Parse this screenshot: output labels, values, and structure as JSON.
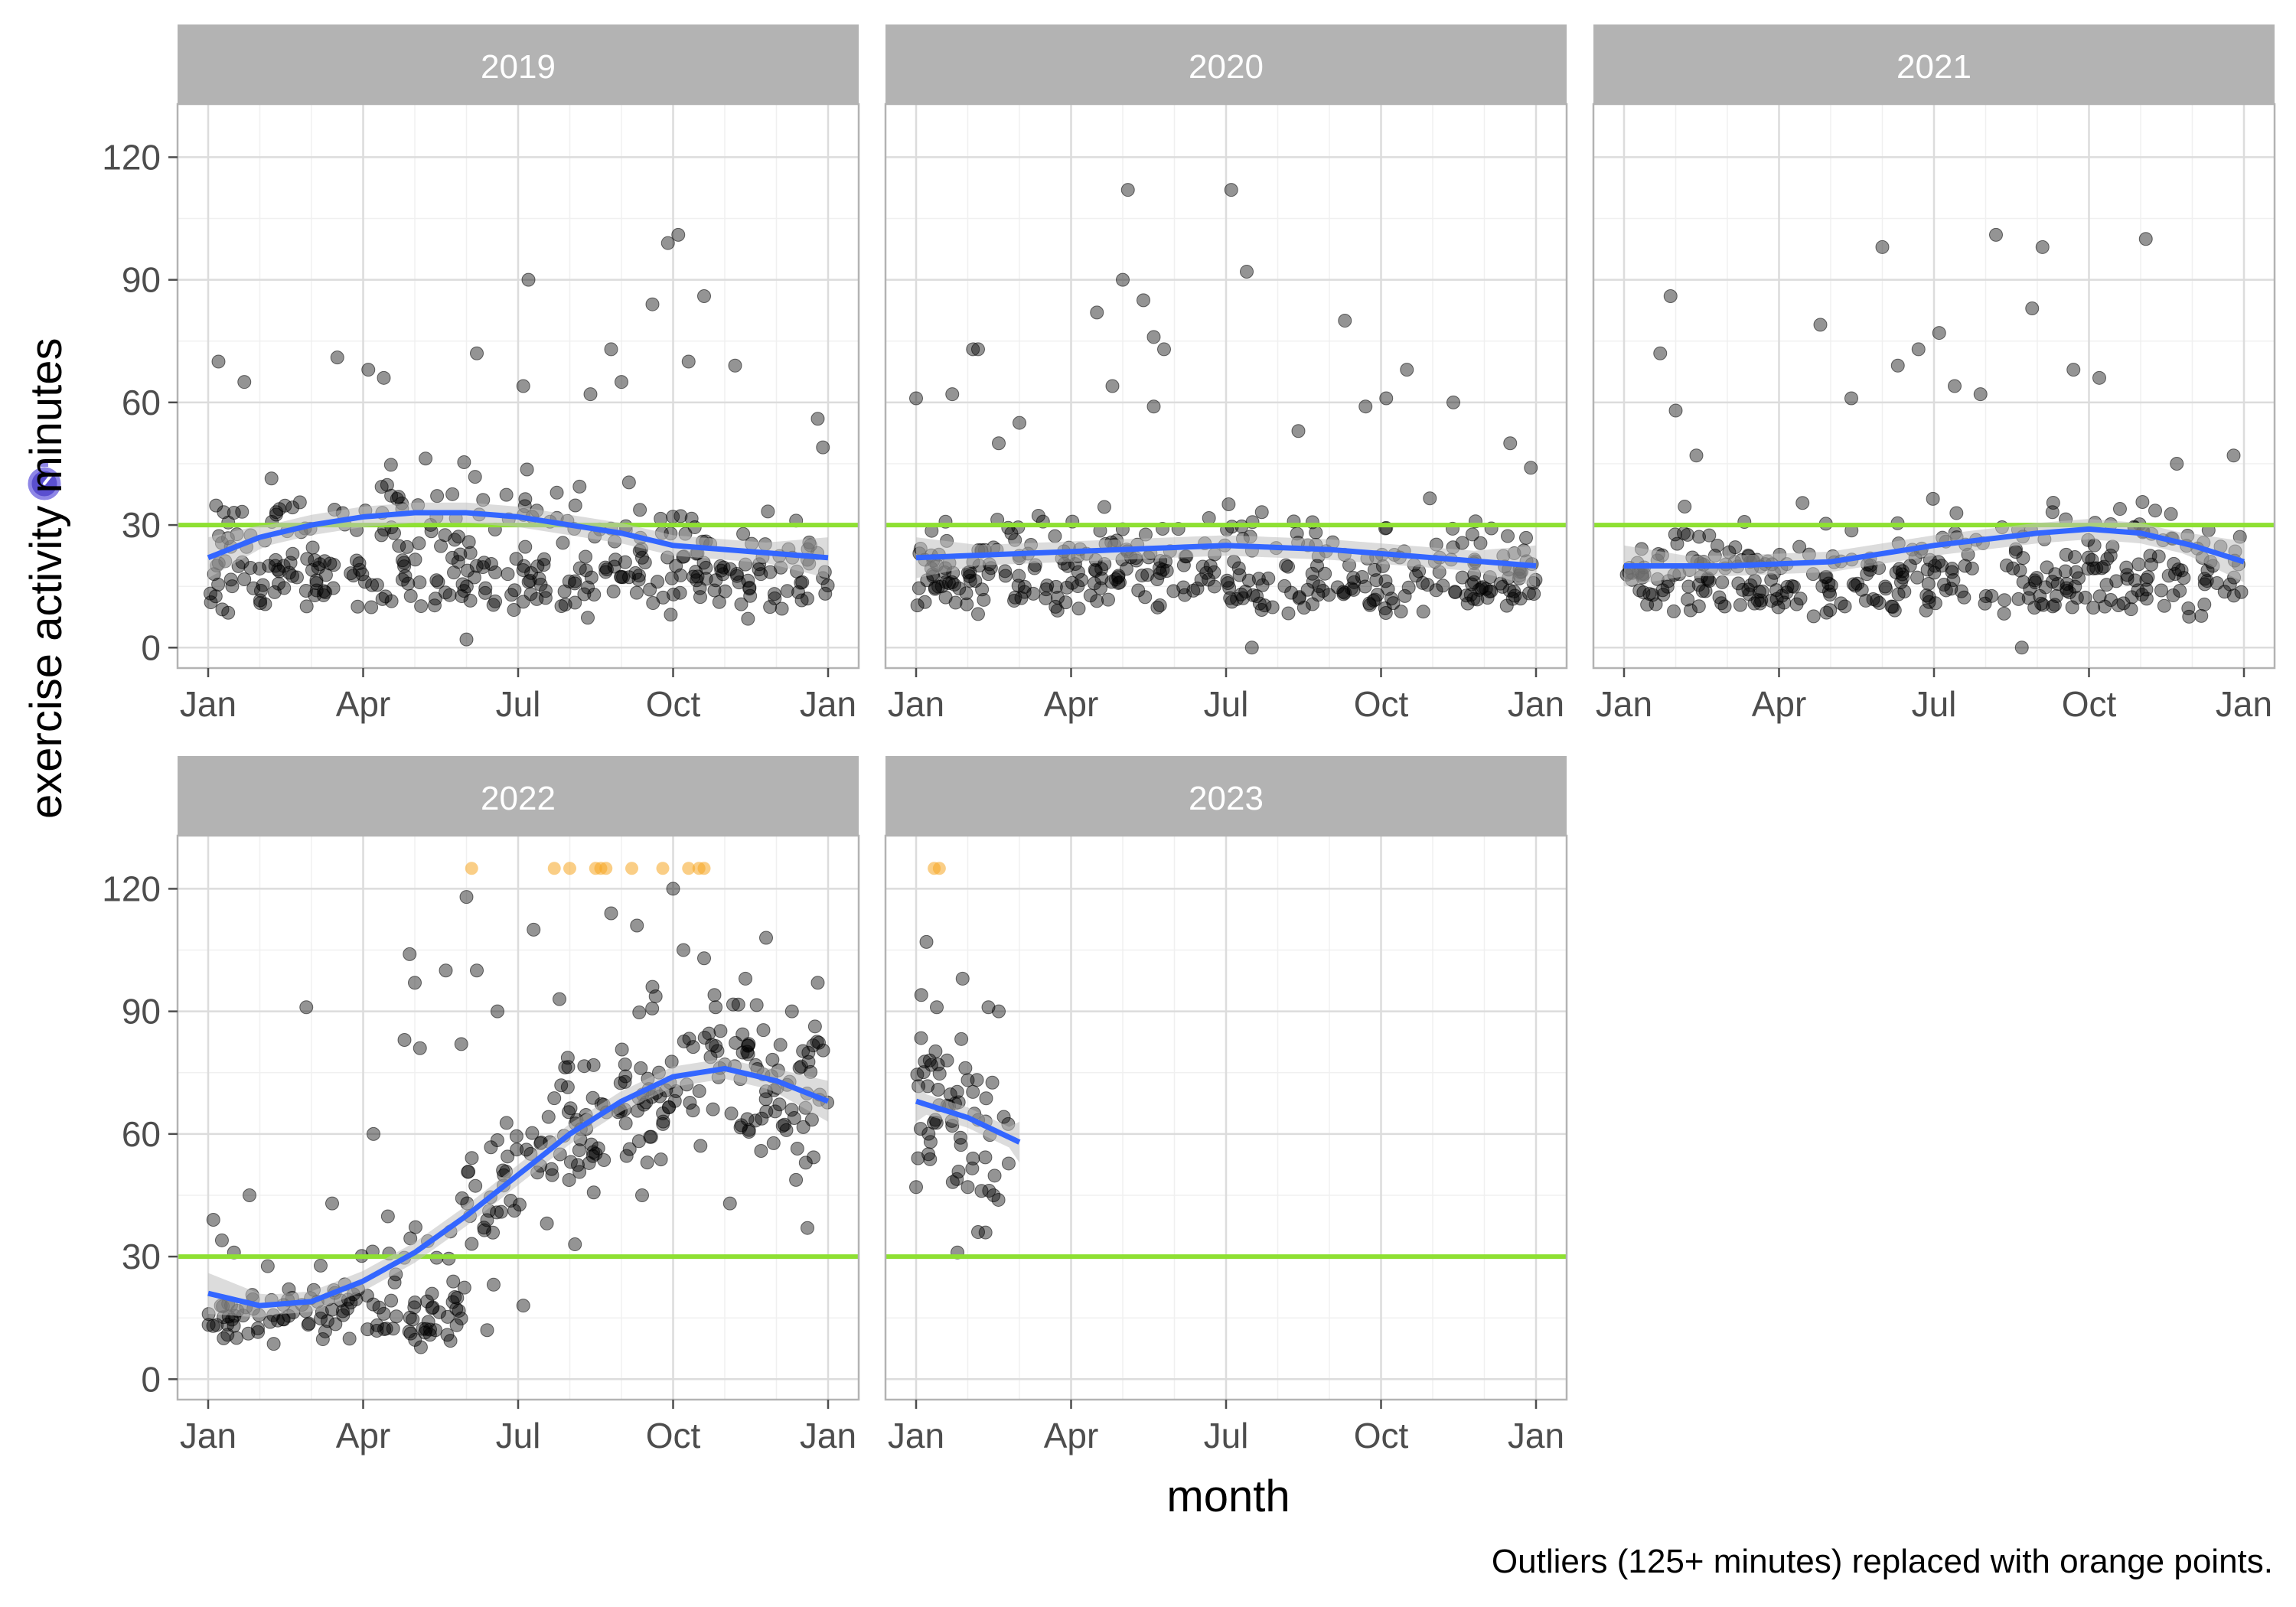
{
  "chart_data": {
    "type": "scatter",
    "facets": [
      "2019",
      "2020",
      "2021",
      "2022",
      "2023"
    ],
    "xlabel": "month",
    "ylabel": "exercise activity minutes",
    "caption": "Outliers (125+ minutes) replaced with orange points.",
    "x_ticks": [
      "Jan",
      "Apr",
      "Jul",
      "Oct",
      "Jan"
    ],
    "y_ticks": [
      0,
      30,
      60,
      90,
      120
    ],
    "ylim": [
      -5,
      133
    ],
    "reference_line": {
      "y": 30,
      "color": "#8ee032"
    },
    "outlier_value": 125,
    "colors": {
      "point": "#000000",
      "smooth": "#3366ff",
      "ribbon": "#bfbfbf",
      "outlier": "#f5a623",
      "strip": "#b3b3b3",
      "ylabel_icon": "#5a4fcf"
    },
    "ylabel_icon": "stopwatch-icon",
    "smooth_trend": {
      "2019": [
        [
          0,
          22
        ],
        [
          1,
          27
        ],
        [
          2,
          30
        ],
        [
          3,
          32
        ],
        [
          4,
          33
        ],
        [
          5,
          33
        ],
        [
          6,
          32
        ],
        [
          7,
          30
        ],
        [
          8,
          28
        ],
        [
          9,
          25
        ],
        [
          10,
          24
        ],
        [
          11,
          23
        ],
        [
          12,
          22
        ]
      ],
      "2020": [
        [
          0,
          22
        ],
        [
          2,
          23
        ],
        [
          4,
          24
        ],
        [
          6,
          25
        ],
        [
          8,
          24
        ],
        [
          10,
          22
        ],
        [
          12,
          20
        ]
      ],
      "2021": [
        [
          0,
          20
        ],
        [
          2,
          20
        ],
        [
          4,
          21
        ],
        [
          6,
          25
        ],
        [
          8,
          28
        ],
        [
          9,
          29
        ],
        [
          10,
          28
        ],
        [
          11,
          25
        ],
        [
          12,
          21
        ]
      ],
      "2022": [
        [
          0,
          21
        ],
        [
          1,
          18
        ],
        [
          2,
          19
        ],
        [
          3,
          24
        ],
        [
          4,
          31
        ],
        [
          5,
          40
        ],
        [
          6,
          50
        ],
        [
          7,
          60
        ],
        [
          8,
          68
        ],
        [
          9,
          74
        ],
        [
          10,
          76
        ],
        [
          11,
          73
        ],
        [
          12,
          68
        ]
      ],
      "2023": [
        [
          0,
          68
        ],
        [
          1,
          64
        ],
        [
          2,
          58
        ]
      ]
    },
    "notable_points": {
      "2019": [
        [
          0.2,
          70
        ],
        [
          0.7,
          65
        ],
        [
          2.5,
          71
        ],
        [
          3.1,
          68
        ],
        [
          3.4,
          66
        ],
        [
          5.2,
          72
        ],
        [
          6.1,
          64
        ],
        [
          6.2,
          90
        ],
        [
          7.4,
          62
        ],
        [
          7.8,
          73
        ],
        [
          8.0,
          65
        ],
        [
          8.6,
          84
        ],
        [
          8.9,
          99
        ],
        [
          9.1,
          101
        ],
        [
          9.3,
          70
        ],
        [
          9.6,
          86
        ],
        [
          10.2,
          69
        ],
        [
          11.8,
          56
        ],
        [
          11.9,
          49
        ],
        [
          0.5,
          33
        ],
        [
          1.3,
          20
        ],
        [
          2.1,
          14
        ],
        [
          3.6,
          28
        ],
        [
          4.4,
          12
        ],
        [
          5.0,
          2
        ],
        [
          5.8,
          18
        ],
        [
          7.1,
          11
        ],
        [
          8.4,
          22
        ],
        [
          9.8,
          14
        ],
        [
          10.7,
          18
        ],
        [
          11.5,
          16
        ]
      ],
      "2020": [
        [
          0.0,
          61
        ],
        [
          0.7,
          62
        ],
        [
          1.1,
          73
        ],
        [
          1.2,
          73
        ],
        [
          1.6,
          50
        ],
        [
          2.0,
          55
        ],
        [
          3.5,
          82
        ],
        [
          3.8,
          64
        ],
        [
          4.0,
          90
        ],
        [
          4.1,
          112
        ],
        [
          4.4,
          85
        ],
        [
          4.6,
          76
        ],
        [
          4.8,
          73
        ],
        [
          4.6,
          59
        ],
        [
          6.1,
          112
        ],
        [
          6.4,
          92
        ],
        [
          7.4,
          53
        ],
        [
          8.3,
          80
        ],
        [
          8.7,
          59
        ],
        [
          9.1,
          61
        ],
        [
          9.5,
          68
        ],
        [
          10.4,
          60
        ],
        [
          11.5,
          50
        ],
        [
          11.9,
          44
        ],
        [
          0.5,
          15
        ],
        [
          1.4,
          18
        ],
        [
          2.7,
          10
        ],
        [
          4.3,
          14
        ],
        [
          5.7,
          20
        ],
        [
          6.5,
          0
        ],
        [
          7.8,
          15
        ],
        [
          9.2,
          12
        ],
        [
          10.8,
          16
        ],
        [
          11.7,
          12
        ]
      ],
      "2021": [
        [
          0.7,
          72
        ],
        [
          0.9,
          86
        ],
        [
          1.0,
          58
        ],
        [
          1.4,
          47
        ],
        [
          3.8,
          79
        ],
        [
          4.4,
          61
        ],
        [
          5.0,
          98
        ],
        [
          5.3,
          69
        ],
        [
          5.7,
          73
        ],
        [
          6.1,
          77
        ],
        [
          6.4,
          64
        ],
        [
          6.9,
          62
        ],
        [
          7.2,
          101
        ],
        [
          7.9,
          83
        ],
        [
          8.1,
          98
        ],
        [
          8.7,
          68
        ],
        [
          9.2,
          66
        ],
        [
          10.1,
          100
        ],
        [
          10.7,
          45
        ],
        [
          11.8,
          47
        ],
        [
          0.3,
          14
        ],
        [
          1.9,
          16
        ],
        [
          3.1,
          11
        ],
        [
          4.7,
          18
        ],
        [
          6.6,
          20
        ],
        [
          7.7,
          0
        ],
        [
          8.8,
          17
        ],
        [
          10.4,
          14
        ],
        [
          11.4,
          20
        ]
      ],
      "2022": [
        [
          0.1,
          39
        ],
        [
          0.5,
          31
        ],
        [
          0.8,
          45
        ],
        [
          1.9,
          91
        ],
        [
          2.4,
          43
        ],
        [
          3.2,
          60
        ],
        [
          3.8,
          83
        ],
        [
          3.9,
          104
        ],
        [
          4.0,
          97
        ],
        [
          4.1,
          81
        ],
        [
          4.6,
          100
        ],
        [
          4.9,
          82
        ],
        [
          5.0,
          118
        ],
        [
          5.2,
          100
        ],
        [
          5.6,
          90
        ],
        [
          6.3,
          110
        ],
        [
          6.8,
          93
        ],
        [
          7.8,
          114
        ],
        [
          8.3,
          111
        ],
        [
          8.6,
          96
        ],
        [
          9.0,
          120
        ],
        [
          9.2,
          105
        ],
        [
          9.6,
          103
        ],
        [
          9.8,
          94
        ],
        [
          10.4,
          98
        ],
        [
          10.8,
          108
        ],
        [
          11.3,
          90
        ],
        [
          11.8,
          97
        ],
        [
          0.3,
          10
        ],
        [
          1.2,
          14
        ],
        [
          2.4,
          17
        ],
        [
          3.4,
          16
        ],
        [
          4.4,
          12
        ],
        [
          5.4,
          12
        ],
        [
          6.1,
          18
        ],
        [
          7.1,
          33
        ],
        [
          8.4,
          45
        ],
        [
          10.1,
          43
        ],
        [
          11.6,
          37
        ]
      ],
      "2023": [
        [
          0.0,
          47
        ],
        [
          0.1,
          94
        ],
        [
          0.2,
          107
        ],
        [
          0.4,
          91
        ],
        [
          0.7,
          62
        ],
        [
          0.8,
          31
        ],
        [
          0.9,
          98
        ],
        [
          1.1,
          54
        ],
        [
          1.4,
          91
        ],
        [
          1.6,
          90
        ],
        [
          1.2,
          36
        ],
        [
          1.5,
          45
        ],
        [
          0.6,
          78
        ],
        [
          1.0,
          47
        ]
      ]
    },
    "outliers": {
      "2022": [
        5.1,
        6.7,
        7.0,
        7.5,
        7.6,
        7.7,
        8.2,
        8.8,
        9.3,
        9.5,
        9.6
      ],
      "2023": [
        0.35,
        0.45
      ]
    }
  }
}
